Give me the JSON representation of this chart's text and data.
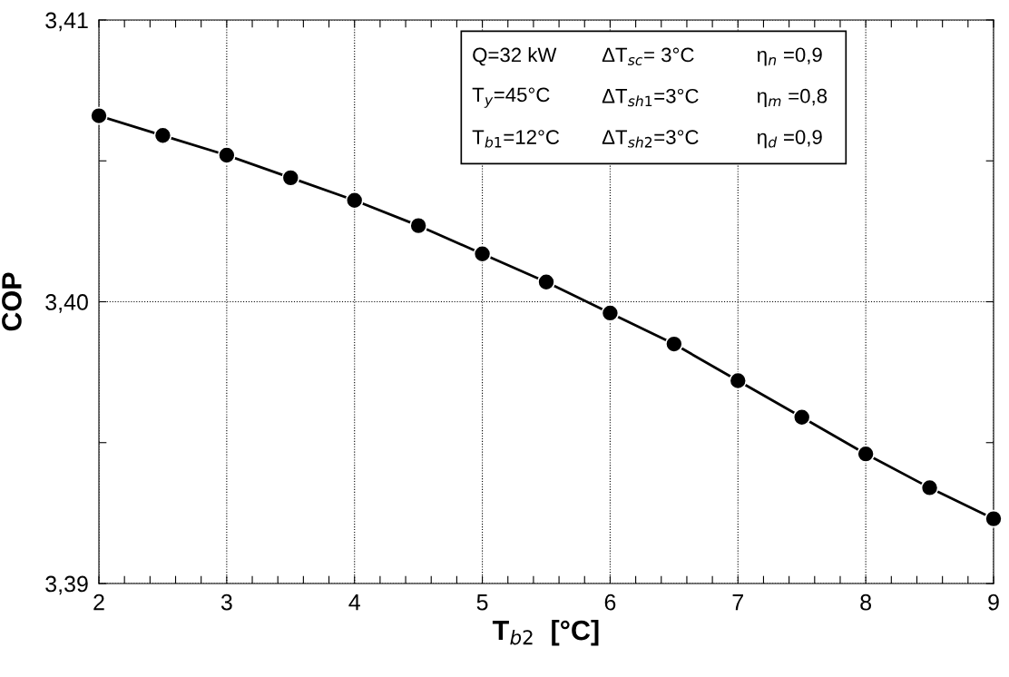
{
  "chart_data": {
    "type": "line",
    "xlabel": "T$_{b2}$  [°C]",
    "ylabel": "COP",
    "x": [
      2,
      2.5,
      3,
      3.5,
      4,
      4.5,
      5,
      5.5,
      6,
      6.5,
      7,
      7.5,
      8,
      8.5,
      9
    ],
    "series": [
      {
        "color": "#000000",
        "values": [
          3.4066,
          3.4059,
          3.4052,
          3.4044,
          3.4036,
          3.4027,
          3.4017,
          3.4007,
          3.3996,
          3.3985,
          3.3972,
          3.3959,
          3.3946,
          3.3934,
          3.3923
        ]
      }
    ],
    "marker": "circle",
    "line_style": "solid",
    "xlim": [
      2,
      9
    ],
    "ylim": [
      3.39,
      3.41
    ],
    "xticks": [
      2,
      {
        "value": 2.2,
        "label": null
      },
      {
        "value": 2.4,
        "label": null
      },
      {
        "value": 2.6,
        "label": null
      },
      {
        "value": 2.8,
        "label": null
      },
      3,
      {
        "value": 3.2,
        "label": null
      },
      {
        "value": 3.4,
        "label": null
      },
      {
        "value": 3.6,
        "label": null
      },
      {
        "value": 3.8,
        "label": null
      },
      4,
      {
        "value": 4.2,
        "label": null
      },
      {
        "value": 4.4,
        "label": null
      },
      {
        "value": 4.6,
        "label": null
      },
      {
        "value": 4.8,
        "label": null
      },
      5,
      {
        "value": 5.2,
        "label": null
      },
      {
        "value": 5.4,
        "label": null
      },
      {
        "value": 5.6,
        "label": null
      },
      {
        "value": 5.8,
        "label": null
      },
      6,
      {
        "value": 6.2,
        "label": null
      },
      {
        "value": 6.4,
        "label": null
      },
      {
        "value": 6.6,
        "label": null
      },
      {
        "value": 6.8,
        "label": null
      },
      7,
      {
        "value": 7.2,
        "label": null
      },
      {
        "value": 7.4,
        "label": null
      },
      {
        "value": 7.6,
        "label": null
      },
      {
        "value": 7.8,
        "label": null
      },
      8,
      {
        "value": 8.2,
        "label": null
      },
      {
        "value": 8.4,
        "label": null
      },
      {
        "value": 8.6,
        "label": null
      },
      {
        "value": 8.8,
        "label": null
      },
      9
    ],
    "yticks": [
      {
        "value": 3.39,
        "label": "3,39"
      },
      {
        "value": 3.395,
        "label": null
      },
      {
        "value": 3.4,
        "label": "3,40"
      },
      {
        "value": 3.405,
        "label": null
      },
      {
        "value": 3.41,
        "label": "3,41"
      }
    ],
    "grid": true,
    "annotations": [
      "Q=32 kW",
      "ΔT$_{sc}$= 3°C",
      "η$_{n}$ =0,9",
      "T$_{y}$=45°C",
      "ΔT$_{sh1}$=3°C",
      "η$_{m}$ =0,8",
      "T$_{b1}$=12°C",
      "ΔT$_{sh2}$=3°C",
      "η$_{d}$ =0,9"
    ]
  }
}
